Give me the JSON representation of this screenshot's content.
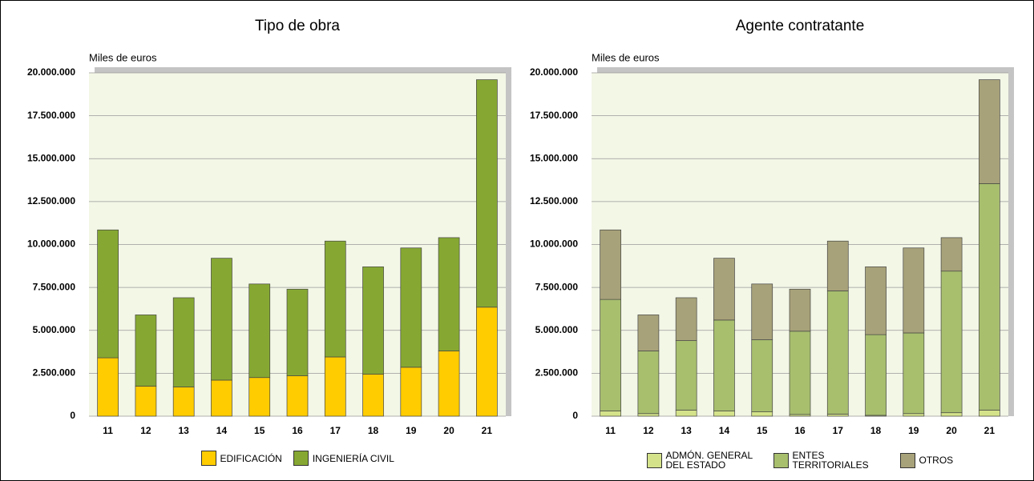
{
  "chart_data": [
    {
      "type": "bar",
      "stacked": true,
      "title": "Tipo de obra",
      "y_label": "Miles de euros",
      "categories": [
        "11",
        "12",
        "13",
        "14",
        "15",
        "16",
        "17",
        "18",
        "19",
        "20",
        "21"
      ],
      "series": [
        {
          "name": "EDIFICACIÓN",
          "color": "#ffcc00",
          "values": [
            3400000,
            1750000,
            1700000,
            2100000,
            2250000,
            2350000,
            3450000,
            2450000,
            2850000,
            3800000,
            6350000
          ]
        },
        {
          "name": "INGENIERÍA  CIVIL",
          "color": "#86a832",
          "values": [
            7450000,
            4150000,
            5200000,
            7100000,
            5450000,
            5050000,
            6750000,
            6250000,
            6950000,
            6600000,
            13250000
          ]
        }
      ],
      "ylim": [
        0,
        20000000
      ],
      "yticks": [
        0,
        {
          "value": 2500000,
          "label": "2.500.000"
        },
        {
          "value": 5000000,
          "label": "5.000.000"
        },
        {
          "value": 7500000,
          "label": "7.500.000"
        },
        {
          "value": 10000000,
          "label": "10.000.000"
        },
        {
          "value": 12500000,
          "label": "12.500.000"
        },
        {
          "value": 15000000,
          "label": "15.000.000"
        },
        {
          "value": 17500000,
          "label": "17.500.000"
        },
        {
          "value": 20000000,
          "label": "20.000.000"
        }
      ],
      "grid": true
    },
    {
      "type": "bar",
      "stacked": true,
      "title": "Agente contratante",
      "y_label": "Miles de euros",
      "categories": [
        "11",
        "12",
        "13",
        "14",
        "15",
        "16",
        "17",
        "18",
        "19",
        "20",
        "21"
      ],
      "series": [
        {
          "name": "ADMÓN. GENERAL DEL ESTADO",
          "color": "#d4e38a",
          "values": [
            300000,
            150000,
            350000,
            300000,
            250000,
            100000,
            120000,
            50000,
            150000,
            200000,
            350000
          ]
        },
        {
          "name": "ENTES TERRITORIALES",
          "color": "#a8bf6e",
          "values": [
            6500000,
            3650000,
            4050000,
            5300000,
            4200000,
            4850000,
            7180000,
            4700000,
            4700000,
            8250000,
            13200000
          ]
        },
        {
          "name": "OTROS",
          "color": "#a8a27a",
          "values": [
            4050000,
            2100000,
            2500000,
            3600000,
            3250000,
            2450000,
            2900000,
            3950000,
            4950000,
            1950000,
            6050000
          ]
        }
      ],
      "ylim": [
        0,
        20000000
      ],
      "yticks": [
        0,
        {
          "value": 2500000,
          "label": "2.500.000"
        },
        {
          "value": 5000000,
          "label": "5.000.000"
        },
        {
          "value": 7500000,
          "label": "7.500.000"
        },
        {
          "value": 10000000,
          "label": "10.000.000"
        },
        {
          "value": 12500000,
          "label": "12.500.000"
        },
        {
          "value": 15000000,
          "label": "15.000.000"
        },
        {
          "value": 17500000,
          "label": "17.500.000"
        },
        {
          "value": 20000000,
          "label": "20.000.000"
        }
      ],
      "grid": true
    }
  ]
}
